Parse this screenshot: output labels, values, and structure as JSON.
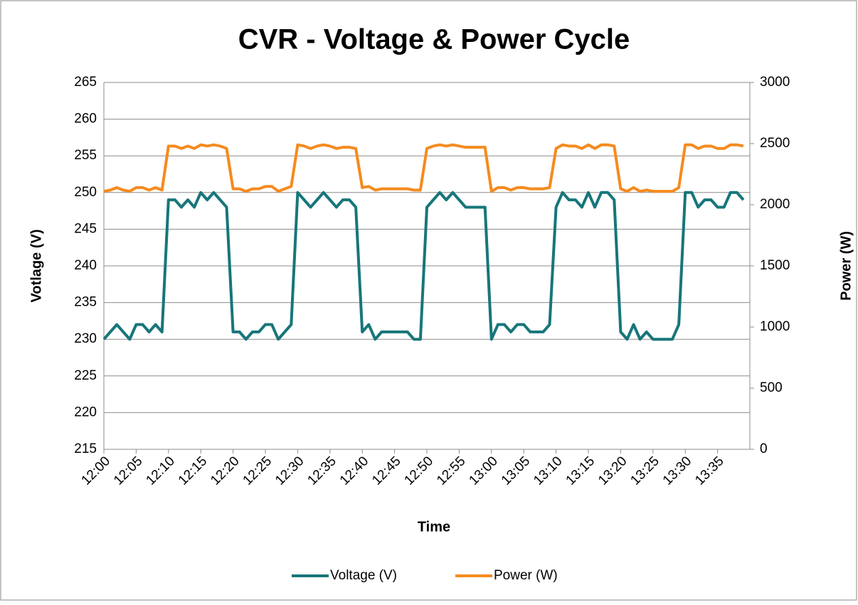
{
  "chart_data": {
    "type": "line",
    "title": "CVR - Voltage & Power Cycle",
    "x_label": "Time",
    "y_label": "Votlage (V)",
    "y2_label": "Power (W)",
    "categories": [
      "12:00",
      null,
      null,
      null,
      null,
      "12:05",
      null,
      null,
      null,
      null,
      "12:10",
      null,
      null,
      null,
      null,
      "12:15",
      null,
      null,
      null,
      null,
      "12:20",
      null,
      null,
      null,
      null,
      "12:25",
      null,
      null,
      null,
      null,
      "12:30",
      null,
      null,
      null,
      null,
      "12:35",
      null,
      null,
      null,
      null,
      "12:40",
      null,
      null,
      null,
      null,
      "12:45",
      null,
      null,
      null,
      null,
      "12:50",
      null,
      null,
      null,
      null,
      "12:55",
      null,
      null,
      null,
      null,
      "13:00",
      null,
      null,
      null,
      null,
      "13:05",
      null,
      null,
      null,
      null,
      "13:10",
      null,
      null,
      null,
      null,
      "13:15",
      null,
      null,
      null,
      null,
      "13:20",
      null,
      null,
      null,
      null,
      "13:25",
      null,
      null,
      null,
      null,
      "13:30",
      null,
      null,
      null,
      null,
      "13:35",
      null,
      null,
      null,
      null
    ],
    "series": [
      {
        "name": "Voltage (V)",
        "color": "#17767a",
        "values": [
          230,
          231,
          232,
          231,
          230,
          232,
          232,
          231,
          232,
          231,
          249,
          249,
          248,
          249,
          248,
          250,
          249,
          250,
          249,
          248,
          231,
          231,
          230,
          231,
          231,
          232,
          232,
          230,
          231,
          232,
          250,
          249,
          248,
          249,
          250,
          249,
          248,
          249,
          249,
          248,
          231,
          232,
          230,
          231,
          231,
          231,
          231,
          231,
          230,
          230,
          248,
          249,
          250,
          249,
          250,
          249,
          248,
          248,
          248,
          248,
          230,
          232,
          232,
          231,
          232,
          232,
          231,
          231,
          231,
          232,
          248,
          250,
          249,
          249,
          248,
          250,
          248,
          250,
          250,
          249,
          231,
          230,
          232,
          230,
          231,
          230,
          230,
          230,
          230,
          232,
          250,
          250,
          248,
          249,
          249,
          248,
          248,
          250,
          250,
          249
        ]
      },
      {
        "name": "Power (W)",
        "color": "#f58b1f",
        "axis": "y2",
        "values": [
          2110,
          2120,
          2140,
          2120,
          2110,
          2140,
          2140,
          2120,
          2140,
          2120,
          2480,
          2480,
          2460,
          2480,
          2460,
          2490,
          2480,
          2490,
          2480,
          2460,
          2130,
          2130,
          2110,
          2130,
          2130,
          2150,
          2150,
          2110,
          2130,
          2150,
          2490,
          2480,
          2460,
          2480,
          2490,
          2480,
          2460,
          2470,
          2470,
          2460,
          2140,
          2150,
          2120,
          2130,
          2130,
          2130,
          2130,
          2130,
          2120,
          2120,
          2460,
          2480,
          2490,
          2480,
          2490,
          2480,
          2470,
          2470,
          2470,
          2470,
          2110,
          2140,
          2140,
          2120,
          2140,
          2140,
          2130,
          2130,
          2130,
          2140,
          2460,
          2490,
          2480,
          2480,
          2460,
          2490,
          2460,
          2490,
          2490,
          2480,
          2130,
          2110,
          2140,
          2110,
          2120,
          2110,
          2110,
          2110,
          2110,
          2140,
          2490,
          2490,
          2460,
          2480,
          2480,
          2460,
          2460,
          2490,
          2490,
          2480
        ]
      }
    ],
    "ylim": [
      215,
      265
    ],
    "yticks": [
      215,
      220,
      225,
      230,
      235,
      240,
      245,
      250,
      255,
      260,
      265
    ],
    "y2lim": [
      0,
      3000
    ],
    "y2ticks": [
      0,
      500,
      1000,
      1500,
      2000,
      2500,
      3000
    ],
    "grid": true,
    "legend": "bottom"
  }
}
